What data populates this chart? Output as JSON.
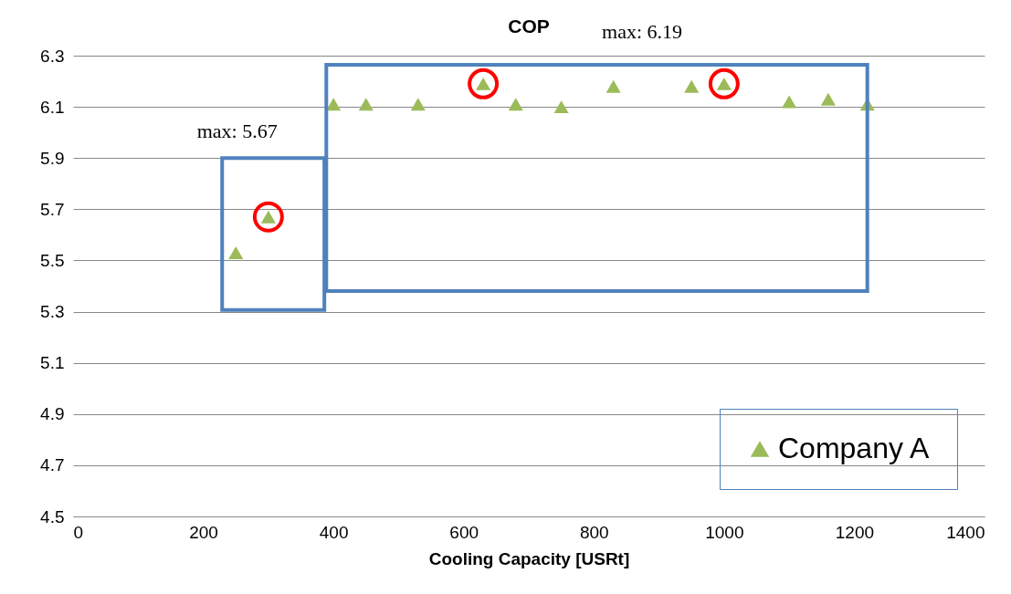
{
  "chart_data": {
    "type": "scatter",
    "title": "COP",
    "xlabel": "Cooling Capacity [USRt]",
    "x": [
      250,
      300,
      400,
      450,
      530,
      630,
      680,
      750,
      830,
      950,
      1000,
      1100,
      1160,
      1220
    ],
    "series": [
      {
        "name": "Company A",
        "color": "#9bbb59",
        "values": [
          5.53,
          5.67,
          6.11,
          6.11,
          6.11,
          6.19,
          6.11,
          6.1,
          6.18,
          6.18,
          6.19,
          6.12,
          6.13,
          6.11
        ]
      }
    ],
    "xlim": [
      0,
      1400
    ],
    "xticks": [
      0,
      200,
      400,
      600,
      800,
      1000,
      1200,
      1400
    ],
    "ylim": [
      4.5,
      6.3
    ],
    "yticks": [
      4.5,
      4.7,
      4.9,
      5.1,
      5.3,
      5.5,
      5.7,
      5.9,
      6.1,
      6.3
    ],
    "annotations": [
      "max: 5.67",
      "max: 6.19"
    ],
    "grid": "y",
    "legend": "bottom right",
    "marker": "triangle"
  }
}
